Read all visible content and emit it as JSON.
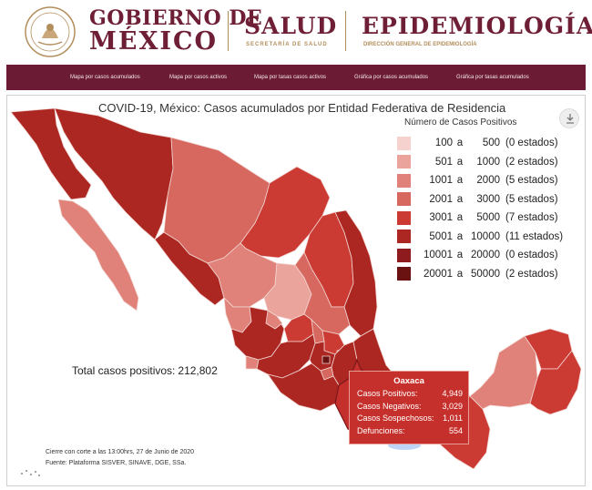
{
  "header": {
    "gov_line1": "GOBIERNO DE",
    "gov_line2": "MÉXICO",
    "salud": "SALUD",
    "salud_sub": "SECRETARÍA DE SALUD",
    "epi": "EPIDEMIOLOGÍA",
    "epi_sub": "DIRECCIÓN GENERAL DE EPIDEMIOLOGÍA"
  },
  "nav": {
    "items": [
      {
        "label": "Mapa por casos acumulados"
      },
      {
        "label": "Mapa por casos activos"
      },
      {
        "label": "Mapa por tasas casos activos"
      },
      {
        "label": "Gráfica por casos acumulados"
      },
      {
        "label": "Gráfica por tasas acumulados"
      }
    ]
  },
  "map": {
    "title": "COVID-19, México: Casos acumulados por Entidad Federativa de Residencia",
    "total_label": "Total casos positivos:",
    "total_value": "212,802",
    "cutoff": "Cierre con corte a las 13:00hrs, 27 de Junio de 2020",
    "source": "Fuente: Plataforma SISVER, SINAVE, DGE, SSa.",
    "download_icon": "download-icon"
  },
  "legend": {
    "title": "Número de Casos Positivos",
    "rows": [
      {
        "min": "100",
        "sep": "a",
        "max": "500",
        "count": "(0 estados)",
        "color": "#f5d2cd"
      },
      {
        "min": "501",
        "sep": "a",
        "max": "1000",
        "count": "(2 estados)",
        "color": "#eaa49c"
      },
      {
        "min": "1001",
        "sep": "a",
        "max": "2000",
        "count": "(5 estados)",
        "color": "#e08279"
      },
      {
        "min": "2001",
        "sep": "a",
        "max": "3000",
        "count": "(5 estados)",
        "color": "#d6685f"
      },
      {
        "min": "3001",
        "sep": "a",
        "max": "5000",
        "count": "(7 estados)",
        "color": "#cb3b34"
      },
      {
        "min": "5001",
        "sep": "a",
        "max": "10000",
        "count": "(11 estados)",
        "color": "#ac2722"
      },
      {
        "min": "10001",
        "sep": "a",
        "max": "20000",
        "count": "(0 estados)",
        "color": "#8e1b1d"
      },
      {
        "min": "20001",
        "sep": "a",
        "max": "50000",
        "count": "(2 estados)",
        "color": "#6a1212"
      }
    ]
  },
  "tooltip": {
    "state": "Oaxaca",
    "rows": [
      {
        "label": "Casos Positivos:",
        "value": "4,949"
      },
      {
        "label": "Casos Negativos:",
        "value": "3,029"
      },
      {
        "label": "Casos Sospechosos:",
        "value": "1,011"
      },
      {
        "label": "Defunciones:",
        "value": "554"
      }
    ],
    "color": "#c6302c"
  }
}
